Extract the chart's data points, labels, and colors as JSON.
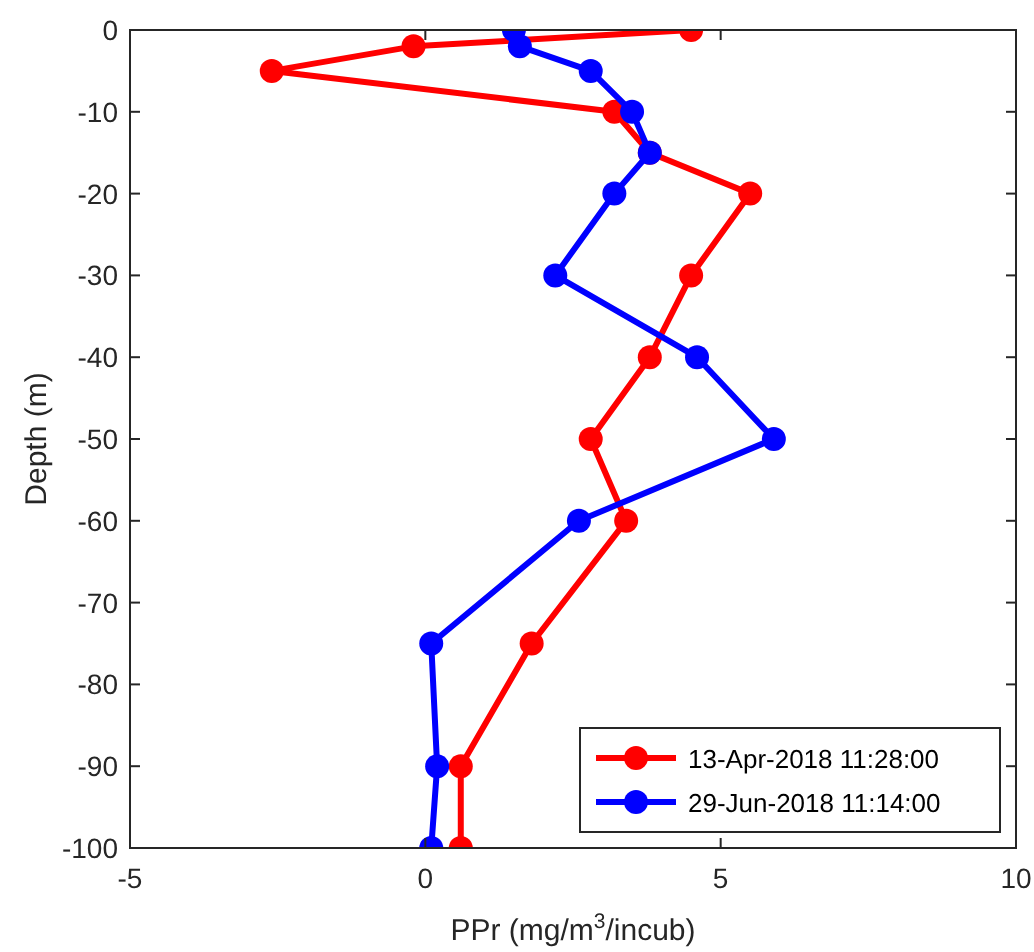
{
  "chart_data": {
    "type": "line",
    "xlabel": "PPr (mg/m$^{3}$/incub)",
    "ylabel": "Depth (m)",
    "xlim": [
      -5,
      10
    ],
    "xticks": [
      -5,
      0,
      5,
      10
    ],
    "ylim": [
      -100,
      0
    ],
    "yticks": [
      -100,
      -90,
      -80,
      -70,
      -60,
      -50,
      -40,
      -30,
      -20,
      -10,
      0
    ],
    "marker": "circle",
    "line_style": "solid",
    "grid": false,
    "legend": "bottom right",
    "series": [
      {
        "name": "13-Apr-2018 11:28:00",
        "color": "#ff0000",
        "x": [
          4.5,
          -0.2,
          -2.6,
          3.2,
          3.8,
          5.5,
          4.5,
          3.8,
          2.8,
          3.4,
          1.8,
          0.6,
          0.6
        ],
        "values": [
          0,
          -2,
          -5,
          -10,
          -15,
          -20,
          -30,
          -40,
          -50,
          -60,
          -75,
          -90,
          -100
        ]
      },
      {
        "name": "29-Jun-2018 11:14:00",
        "color": "#0000ff",
        "x": [
          1.5,
          1.6,
          2.8,
          3.5,
          3.8,
          3.2,
          2.2,
          4.6,
          5.9,
          2.6,
          0.1,
          0.2,
          0.1
        ],
        "values": [
          0,
          -2,
          -5,
          -10,
          -15,
          -20,
          -30,
          -40,
          -50,
          -60,
          -75,
          -90,
          -100
        ]
      }
    ]
  }
}
